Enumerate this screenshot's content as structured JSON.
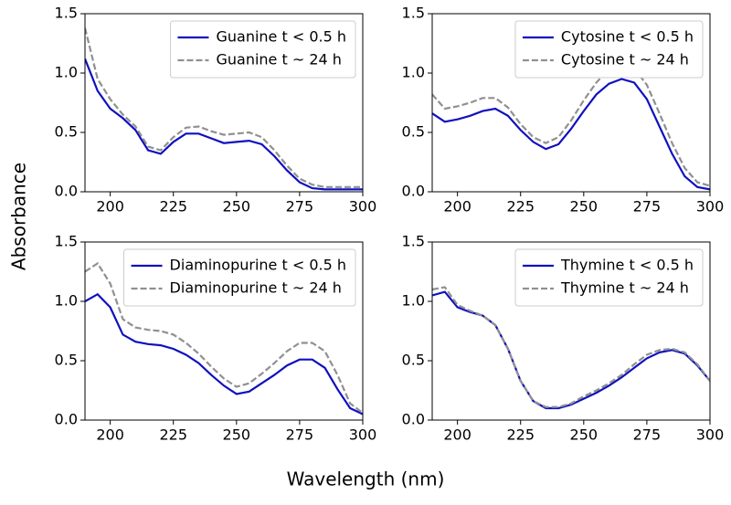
{
  "xlabel": "Wavelength (nm)",
  "ylabel": "Absorbance",
  "chart_data": [
    {
      "type": "line",
      "legend": "upper right",
      "xlim": [
        190,
        300
      ],
      "ylim": [
        0,
        1.5
      ],
      "xticks": [
        200,
        225,
        250,
        275,
        300
      ],
      "yticks": [
        {
          "value": 0,
          "label": "0.0"
        },
        0.5,
        {
          "value": 1,
          "label": "1.0"
        },
        {
          "value": 1.5,
          "label": "1.5"
        }
      ],
      "x": [
        190,
        195,
        200,
        205,
        210,
        215,
        220,
        225,
        230,
        235,
        240,
        245,
        250,
        255,
        260,
        265,
        270,
        275,
        280,
        285,
        290,
        295,
        300
      ],
      "series": [
        {
          "name": "Guanine t < 0.5 h",
          "color": "#1010c0",
          "style": "solid",
          "values": [
            1.12,
            0.85,
            0.7,
            0.62,
            0.52,
            0.35,
            0.32,
            0.42,
            0.49,
            0.49,
            0.45,
            0.41,
            0.42,
            0.43,
            0.4,
            0.3,
            0.18,
            0.08,
            0.03,
            0.02,
            0.02,
            0.02,
            0.02
          ]
        },
        {
          "name": "Guanine t ~ 24 h",
          "color": "#909090",
          "style": "dashed",
          "values": [
            1.38,
            0.95,
            0.78,
            0.65,
            0.55,
            0.38,
            0.35,
            0.46,
            0.54,
            0.55,
            0.51,
            0.48,
            0.49,
            0.5,
            0.46,
            0.35,
            0.22,
            0.11,
            0.06,
            0.04,
            0.04,
            0.04,
            0.04
          ]
        }
      ]
    },
    {
      "type": "line",
      "legend": "upper right",
      "xlim": [
        190,
        300
      ],
      "ylim": [
        0,
        1.5
      ],
      "xticks": [
        200,
        225,
        250,
        275,
        300
      ],
      "yticks": [
        {
          "value": 0,
          "label": "0.0"
        },
        0.5,
        {
          "value": 1,
          "label": "1.0"
        },
        {
          "value": 1.5,
          "label": "1.5"
        }
      ],
      "x": [
        190,
        195,
        200,
        205,
        210,
        215,
        220,
        225,
        230,
        235,
        240,
        245,
        250,
        255,
        260,
        265,
        270,
        275,
        280,
        285,
        290,
        295,
        300
      ],
      "series": [
        {
          "name": "Cytosine t < 0.5 h",
          "color": "#1010c0",
          "style": "solid",
          "values": [
            0.66,
            0.59,
            0.61,
            0.64,
            0.68,
            0.7,
            0.64,
            0.52,
            0.42,
            0.36,
            0.4,
            0.53,
            0.68,
            0.82,
            0.91,
            0.95,
            0.92,
            0.78,
            0.55,
            0.32,
            0.13,
            0.04,
            0.02
          ]
        },
        {
          "name": "Cytosine t ~ 24 h",
          "color": "#909090",
          "style": "dashed",
          "values": [
            0.82,
            0.7,
            0.72,
            0.75,
            0.79,
            0.79,
            0.71,
            0.57,
            0.46,
            0.41,
            0.46,
            0.6,
            0.77,
            0.92,
            1.03,
            1.07,
            1.04,
            0.9,
            0.66,
            0.41,
            0.2,
            0.08,
            0.05
          ]
        }
      ]
    },
    {
      "type": "line",
      "legend": "upper right",
      "xlim": [
        190,
        300
      ],
      "ylim": [
        0,
        1.5
      ],
      "xticks": [
        200,
        225,
        250,
        275,
        300
      ],
      "yticks": [
        {
          "value": 0,
          "label": "0.0"
        },
        0.5,
        {
          "value": 1,
          "label": "1.0"
        },
        {
          "value": 1.5,
          "label": "1.5"
        }
      ],
      "x": [
        190,
        195,
        200,
        205,
        210,
        215,
        220,
        225,
        230,
        235,
        240,
        245,
        250,
        255,
        260,
        265,
        270,
        275,
        280,
        285,
        290,
        295,
        300
      ],
      "series": [
        {
          "name": "Diaminopurine t < 0.5 h",
          "color": "#1010c0",
          "style": "solid",
          "values": [
            1.0,
            1.06,
            0.95,
            0.72,
            0.66,
            0.64,
            0.63,
            0.6,
            0.55,
            0.48,
            0.38,
            0.29,
            0.22,
            0.24,
            0.31,
            0.38,
            0.46,
            0.51,
            0.51,
            0.44,
            0.26,
            0.1,
            0.05
          ]
        },
        {
          "name": "Diaminopurine t ~ 24 h",
          "color": "#909090",
          "style": "dashed",
          "values": [
            1.25,
            1.32,
            1.15,
            0.85,
            0.78,
            0.76,
            0.75,
            0.72,
            0.65,
            0.56,
            0.45,
            0.35,
            0.28,
            0.31,
            0.39,
            0.48,
            0.58,
            0.65,
            0.65,
            0.58,
            0.38,
            0.14,
            0.06
          ]
        }
      ]
    },
    {
      "type": "line",
      "legend": "upper right",
      "xlim": [
        190,
        300
      ],
      "ylim": [
        0,
        1.5
      ],
      "xticks": [
        200,
        225,
        250,
        275,
        300
      ],
      "yticks": [
        {
          "value": 0,
          "label": "0.0"
        },
        0.5,
        {
          "value": 1,
          "label": "1.0"
        },
        {
          "value": 1.5,
          "label": "1.5"
        }
      ],
      "x": [
        190,
        195,
        200,
        205,
        210,
        215,
        220,
        225,
        230,
        235,
        240,
        245,
        250,
        255,
        260,
        265,
        270,
        275,
        280,
        285,
        290,
        295,
        300
      ],
      "series": [
        {
          "name": "Thymine t < 0.5 h",
          "color": "#1010c0",
          "style": "solid",
          "values": [
            1.05,
            1.08,
            0.95,
            0.91,
            0.88,
            0.8,
            0.6,
            0.33,
            0.16,
            0.1,
            0.1,
            0.13,
            0.18,
            0.23,
            0.29,
            0.36,
            0.44,
            0.52,
            0.57,
            0.59,
            0.56,
            0.46,
            0.33
          ]
        },
        {
          "name": "Thymine t ~ 24 h",
          "color": "#909090",
          "style": "dashed",
          "values": [
            1.1,
            1.12,
            0.97,
            0.92,
            0.88,
            0.8,
            0.6,
            0.33,
            0.16,
            0.11,
            0.11,
            0.14,
            0.2,
            0.25,
            0.31,
            0.38,
            0.47,
            0.55,
            0.59,
            0.6,
            0.57,
            0.47,
            0.33
          ]
        }
      ]
    }
  ]
}
